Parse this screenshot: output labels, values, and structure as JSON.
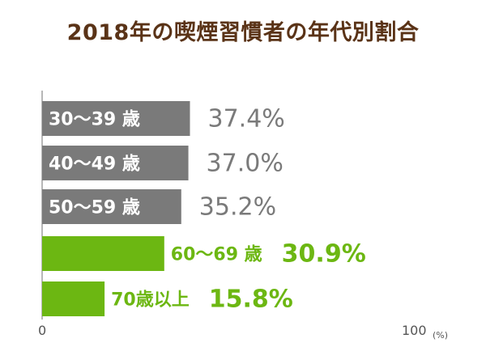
{
  "chart_data": {
    "type": "bar",
    "orientation": "horizontal",
    "title": "2018年の喫煙習慣者の年代別割合",
    "categories": [
      "30〜39 歳",
      "40〜49 歳",
      "50〜59 歳",
      "60〜69 歳",
      "70歳以上"
    ],
    "values": [
      37.4,
      37.0,
      35.2,
      30.9,
      15.8
    ],
    "value_labels": [
      "37.4%",
      "37.0%",
      "35.2%",
      "30.9%",
      "15.8%"
    ],
    "highlighted": [
      false,
      false,
      false,
      true,
      true
    ],
    "xlim": [
      0,
      100
    ],
    "x_tick_labels": [
      "0",
      "100"
    ],
    "x_unit_label": "(%)",
    "grid": false,
    "legend": "none",
    "colors": {
      "title": "#5a3317",
      "bar_gray": "#7a7a7a",
      "bar_green": "#6cb712",
      "label_gray": "#7a7a7a",
      "label_white": "#ffffff",
      "axis": "#6f6f6f",
      "tick_text": "#555555"
    }
  }
}
